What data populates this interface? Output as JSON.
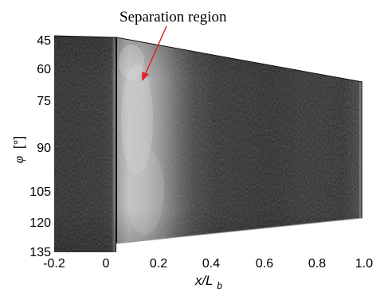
{
  "figure": {
    "annotation": "Separation region",
    "y_axis": {
      "symbol": "φ",
      "unit": "[°]",
      "ticks": [
        "45",
        "60",
        "75",
        "90",
        "105",
        "120",
        "135"
      ]
    },
    "x_axis": {
      "label_main": "x/L",
      "label_sub": "b",
      "ticks": [
        "-0.2",
        "0",
        "0.2",
        "0.4",
        "0.6",
        "0.8",
        "1.0"
      ]
    },
    "colors": {
      "arrow": "#e0202a",
      "image_dark": "#1b1b1b",
      "image_bright": "#c8c8c8"
    }
  }
}
